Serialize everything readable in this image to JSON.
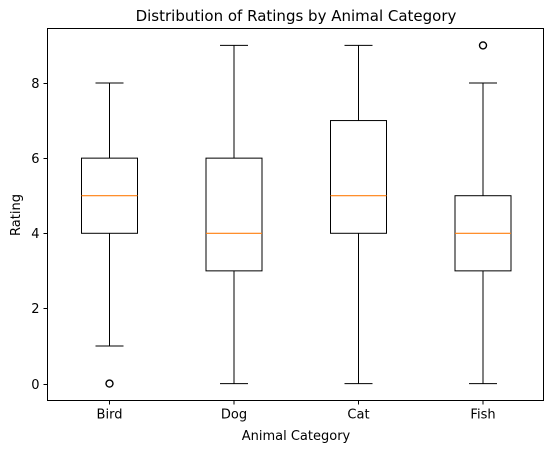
{
  "chart_data": {
    "type": "box",
    "title": "Distribution of Ratings by Animal Category",
    "xlabel": "Animal Category",
    "ylabel": "Rating",
    "ylim": [
      -0.45,
      9.45
    ],
    "yticks": [
      0,
      2,
      4,
      6,
      8
    ],
    "grid": false,
    "categories": [
      "Bird",
      "Dog",
      "Cat",
      "Fish"
    ],
    "boxes": [
      {
        "category": "Bird",
        "whisker_low": 1,
        "q1": 4,
        "median": 5,
        "q3": 6,
        "whisker_high": 8,
        "outliers": [
          0
        ]
      },
      {
        "category": "Dog",
        "whisker_low": 0,
        "q1": 3,
        "median": 4,
        "q3": 6,
        "whisker_high": 9,
        "outliers": []
      },
      {
        "category": "Cat",
        "whisker_low": 0,
        "q1": 4,
        "median": 5,
        "q3": 7,
        "whisker_high": 9,
        "outliers": []
      },
      {
        "category": "Fish",
        "whisker_low": 0,
        "q1": 3,
        "median": 4,
        "q3": 5,
        "whisker_high": 8,
        "outliers": [
          9
        ]
      }
    ],
    "colors": {
      "box": "#000000",
      "median": "#ff7f0e",
      "outlier": "#000000"
    }
  }
}
